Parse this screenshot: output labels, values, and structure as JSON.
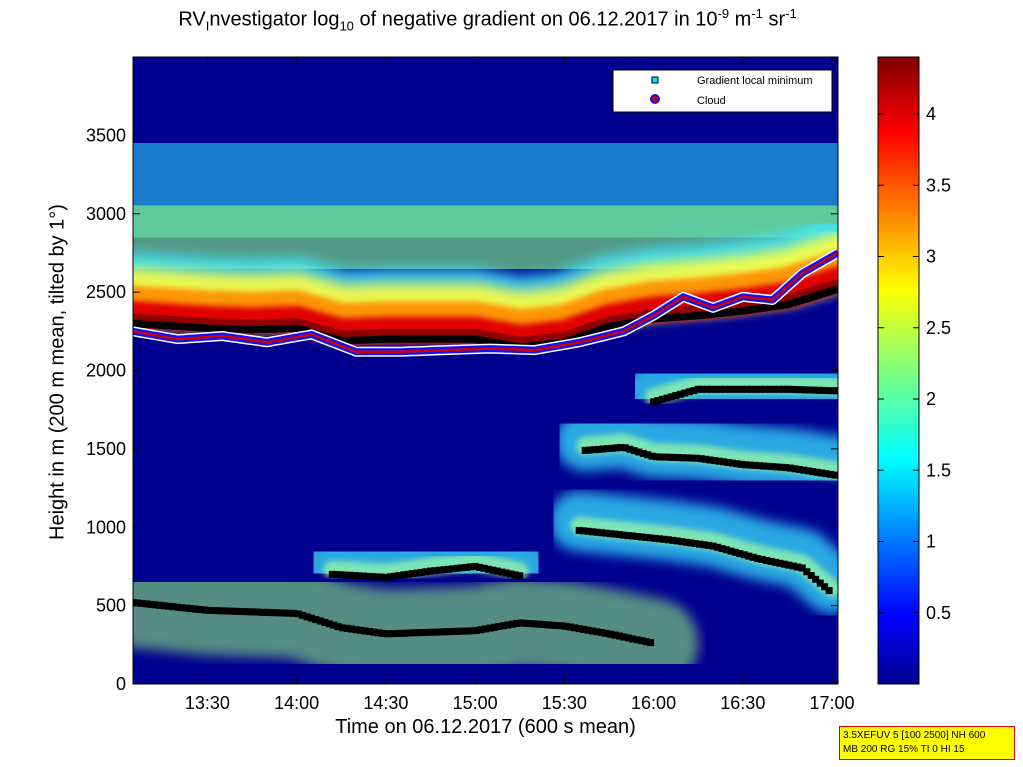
{
  "chart_data": {
    "type": "heatmap",
    "title_parts": {
      "a": "RV",
      "b": "I",
      "c": "nvestigator log",
      "d": "10",
      "e": " of negative gradient on 06.12.2017 in 10",
      "f": "-9",
      "g": " m",
      "h": "-1",
      "i": " sr",
      "j": "-1"
    },
    "xlabel": "Time on 06.12.2017 (600 s mean)",
    "ylabel": "Height in m (200 m mean, tilted by 1°)",
    "x_range": [
      "13:05",
      "17:02"
    ],
    "y_range": [
      0,
      4000
    ],
    "x_ticks": [
      "13:30",
      "14:00",
      "14:30",
      "15:00",
      "15:30",
      "16:00",
      "16:30",
      "17:00"
    ],
    "y_ticks": [
      0,
      500,
      1000,
      1500,
      2000,
      2500,
      3000,
      3500
    ],
    "colorbar": {
      "range": [
        0,
        4.4
      ],
      "ticks": [
        0.5,
        1,
        1.5,
        2,
        2.5,
        3,
        3.5,
        4
      ],
      "colormap": "jet"
    },
    "legend": {
      "position": "top-right",
      "entries": [
        {
          "label": "Gradient local minimum",
          "marker": "square",
          "color": "#00e5ff"
        },
        {
          "label": "Cloud",
          "marker": "circle",
          "color": "#d00000",
          "edge": "#1010ff"
        }
      ]
    },
    "layers": [
      {
        "name": "upper-band",
        "t": [
          "13:05",
          "13:30",
          "13:45",
          "14:00",
          "14:15",
          "14:30",
          "15:00",
          "15:15",
          "15:30",
          "15:45",
          "16:00",
          "16:15",
          "16:30",
          "16:45",
          "17:02"
        ],
        "h": [
          2300,
          2270,
          2260,
          2270,
          2190,
          2200,
          2200,
          2150,
          2180,
          2280,
          2330,
          2350,
          2380,
          2420,
          2520
        ]
      },
      {
        "name": "cloud-base",
        "t": [
          "13:05",
          "13:20",
          "13:35",
          "13:50",
          "14:05",
          "14:20",
          "14:35",
          "14:50",
          "15:05",
          "15:20",
          "15:35",
          "15:50",
          "16:00",
          "16:10",
          "16:20",
          "16:30",
          "16:40",
          "16:50",
          "17:02"
        ],
        "h": [
          2250,
          2200,
          2220,
          2180,
          2230,
          2120,
          2120,
          2130,
          2140,
          2130,
          2180,
          2250,
          2350,
          2470,
          2400,
          2470,
          2450,
          2620,
          2750
        ]
      },
      {
        "name": "layer-1900",
        "t": [
          "16:00",
          "16:15",
          "16:30",
          "16:45",
          "17:02"
        ],
        "h": [
          1800,
          1880,
          1880,
          1880,
          1870
        ]
      },
      {
        "name": "layer-1450",
        "t": [
          "15:37",
          "15:50",
          "16:00",
          "16:15",
          "16:30",
          "16:45",
          "17:02"
        ],
        "h": [
          1490,
          1510,
          1450,
          1440,
          1400,
          1380,
          1330
        ]
      },
      {
        "name": "layer-700",
        "t": [
          "14:12",
          "14:30",
          "14:45",
          "15:00",
          "15:15"
        ],
        "h": [
          700,
          680,
          720,
          750,
          690
        ]
      },
      {
        "name": "layer-950",
        "t": [
          "15:35",
          "15:50",
          "16:05",
          "16:20",
          "16:35",
          "16:50",
          "17:00"
        ],
        "h": [
          980,
          950,
          920,
          880,
          800,
          740,
          580
        ]
      },
      {
        "name": "layer-400",
        "t": [
          "13:05",
          "13:30",
          "14:00",
          "14:15",
          "14:30",
          "15:00",
          "15:15",
          "15:30",
          "15:45",
          "16:00"
        ],
        "h": [
          520,
          470,
          450,
          360,
          320,
          340,
          390,
          370,
          320,
          260
        ]
      }
    ]
  },
  "infobox": {
    "line1": "3.5XEFUV 5 [100 2500] NH 600",
    "line2": "MB 200 RG 15% TI 0 HI 15"
  }
}
